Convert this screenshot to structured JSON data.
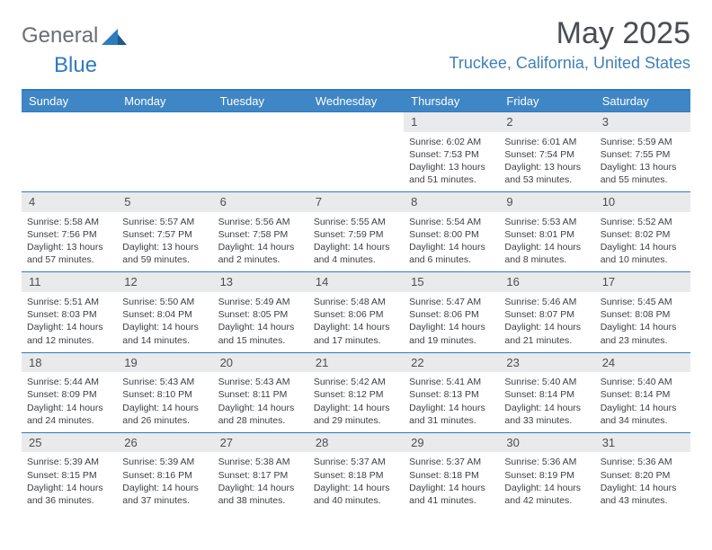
{
  "brand": {
    "part1": "General",
    "part2": "Blue",
    "text_color_gray": "#6a6e73",
    "text_color_blue": "#2f7bbf",
    "icon_fill": "#2f7bbf"
  },
  "header": {
    "month_title": "May 2025",
    "location": "Truckee, California, United States",
    "title_color": "#4a4e53",
    "location_color": "#3f80b8"
  },
  "colors": {
    "header_bar": "#3f86c6",
    "header_text": "#ffffff",
    "rule": "#2f7bbf",
    "daynum_bg": "#e9eaeb",
    "body_text": "#3b3f44"
  },
  "days_of_week": [
    "Sunday",
    "Monday",
    "Tuesday",
    "Wednesday",
    "Thursday",
    "Friday",
    "Saturday"
  ],
  "weeks": [
    [
      {
        "n": "",
        "lines": []
      },
      {
        "n": "",
        "lines": []
      },
      {
        "n": "",
        "lines": []
      },
      {
        "n": "",
        "lines": []
      },
      {
        "n": "1",
        "lines": [
          "Sunrise: 6:02 AM",
          "Sunset: 7:53 PM",
          "Daylight: 13 hours and 51 minutes."
        ]
      },
      {
        "n": "2",
        "lines": [
          "Sunrise: 6:01 AM",
          "Sunset: 7:54 PM",
          "Daylight: 13 hours and 53 minutes."
        ]
      },
      {
        "n": "3",
        "lines": [
          "Sunrise: 5:59 AM",
          "Sunset: 7:55 PM",
          "Daylight: 13 hours and 55 minutes."
        ]
      }
    ],
    [
      {
        "n": "4",
        "lines": [
          "Sunrise: 5:58 AM",
          "Sunset: 7:56 PM",
          "Daylight: 13 hours and 57 minutes."
        ]
      },
      {
        "n": "5",
        "lines": [
          "Sunrise: 5:57 AM",
          "Sunset: 7:57 PM",
          "Daylight: 13 hours and 59 minutes."
        ]
      },
      {
        "n": "6",
        "lines": [
          "Sunrise: 5:56 AM",
          "Sunset: 7:58 PM",
          "Daylight: 14 hours and 2 minutes."
        ]
      },
      {
        "n": "7",
        "lines": [
          "Sunrise: 5:55 AM",
          "Sunset: 7:59 PM",
          "Daylight: 14 hours and 4 minutes."
        ]
      },
      {
        "n": "8",
        "lines": [
          "Sunrise: 5:54 AM",
          "Sunset: 8:00 PM",
          "Daylight: 14 hours and 6 minutes."
        ]
      },
      {
        "n": "9",
        "lines": [
          "Sunrise: 5:53 AM",
          "Sunset: 8:01 PM",
          "Daylight: 14 hours and 8 minutes."
        ]
      },
      {
        "n": "10",
        "lines": [
          "Sunrise: 5:52 AM",
          "Sunset: 8:02 PM",
          "Daylight: 14 hours and 10 minutes."
        ]
      }
    ],
    [
      {
        "n": "11",
        "lines": [
          "Sunrise: 5:51 AM",
          "Sunset: 8:03 PM",
          "Daylight: 14 hours and 12 minutes."
        ]
      },
      {
        "n": "12",
        "lines": [
          "Sunrise: 5:50 AM",
          "Sunset: 8:04 PM",
          "Daylight: 14 hours and 14 minutes."
        ]
      },
      {
        "n": "13",
        "lines": [
          "Sunrise: 5:49 AM",
          "Sunset: 8:05 PM",
          "Daylight: 14 hours and 15 minutes."
        ]
      },
      {
        "n": "14",
        "lines": [
          "Sunrise: 5:48 AM",
          "Sunset: 8:06 PM",
          "Daylight: 14 hours and 17 minutes."
        ]
      },
      {
        "n": "15",
        "lines": [
          "Sunrise: 5:47 AM",
          "Sunset: 8:06 PM",
          "Daylight: 14 hours and 19 minutes."
        ]
      },
      {
        "n": "16",
        "lines": [
          "Sunrise: 5:46 AM",
          "Sunset: 8:07 PM",
          "Daylight: 14 hours and 21 minutes."
        ]
      },
      {
        "n": "17",
        "lines": [
          "Sunrise: 5:45 AM",
          "Sunset: 8:08 PM",
          "Daylight: 14 hours and 23 minutes."
        ]
      }
    ],
    [
      {
        "n": "18",
        "lines": [
          "Sunrise: 5:44 AM",
          "Sunset: 8:09 PM",
          "Daylight: 14 hours and 24 minutes."
        ]
      },
      {
        "n": "19",
        "lines": [
          "Sunrise: 5:43 AM",
          "Sunset: 8:10 PM",
          "Daylight: 14 hours and 26 minutes."
        ]
      },
      {
        "n": "20",
        "lines": [
          "Sunrise: 5:43 AM",
          "Sunset: 8:11 PM",
          "Daylight: 14 hours and 28 minutes."
        ]
      },
      {
        "n": "21",
        "lines": [
          "Sunrise: 5:42 AM",
          "Sunset: 8:12 PM",
          "Daylight: 14 hours and 29 minutes."
        ]
      },
      {
        "n": "22",
        "lines": [
          "Sunrise: 5:41 AM",
          "Sunset: 8:13 PM",
          "Daylight: 14 hours and 31 minutes."
        ]
      },
      {
        "n": "23",
        "lines": [
          "Sunrise: 5:40 AM",
          "Sunset: 8:14 PM",
          "Daylight: 14 hours and 33 minutes."
        ]
      },
      {
        "n": "24",
        "lines": [
          "Sunrise: 5:40 AM",
          "Sunset: 8:14 PM",
          "Daylight: 14 hours and 34 minutes."
        ]
      }
    ],
    [
      {
        "n": "25",
        "lines": [
          "Sunrise: 5:39 AM",
          "Sunset: 8:15 PM",
          "Daylight: 14 hours and 36 minutes."
        ]
      },
      {
        "n": "26",
        "lines": [
          "Sunrise: 5:39 AM",
          "Sunset: 8:16 PM",
          "Daylight: 14 hours and 37 minutes."
        ]
      },
      {
        "n": "27",
        "lines": [
          "Sunrise: 5:38 AM",
          "Sunset: 8:17 PM",
          "Daylight: 14 hours and 38 minutes."
        ]
      },
      {
        "n": "28",
        "lines": [
          "Sunrise: 5:37 AM",
          "Sunset: 8:18 PM",
          "Daylight: 14 hours and 40 minutes."
        ]
      },
      {
        "n": "29",
        "lines": [
          "Sunrise: 5:37 AM",
          "Sunset: 8:18 PM",
          "Daylight: 14 hours and 41 minutes."
        ]
      },
      {
        "n": "30",
        "lines": [
          "Sunrise: 5:36 AM",
          "Sunset: 8:19 PM",
          "Daylight: 14 hours and 42 minutes."
        ]
      },
      {
        "n": "31",
        "lines": [
          "Sunrise: 5:36 AM",
          "Sunset: 8:20 PM",
          "Daylight: 14 hours and 43 minutes."
        ]
      }
    ]
  ]
}
